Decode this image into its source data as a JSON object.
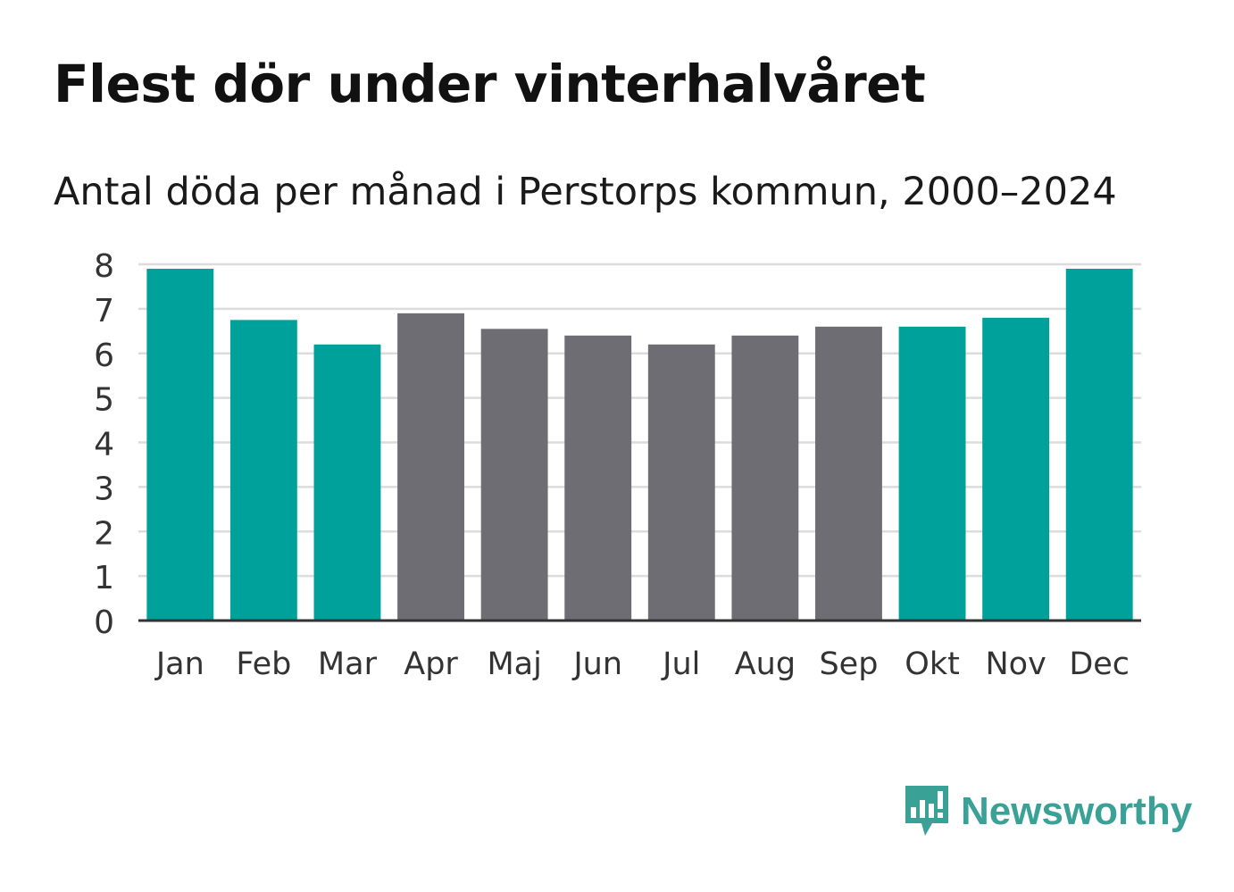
{
  "header": {
    "title": "Flest dör under vinterhalvåret",
    "subtitle": "Antal döda per månad i Perstorps kommun, 2000–2024"
  },
  "chart_data": {
    "type": "bar",
    "categories": [
      "Jan",
      "Feb",
      "Mar",
      "Apr",
      "Maj",
      "Jun",
      "Jul",
      "Aug",
      "Sep",
      "Okt",
      "Nov",
      "Dec"
    ],
    "values": [
      7.9,
      6.75,
      6.2,
      6.9,
      6.55,
      6.4,
      6.2,
      6.4,
      6.6,
      6.6,
      6.8,
      7.9
    ],
    "groups": [
      "winter",
      "winter",
      "winter",
      "summer",
      "summer",
      "summer",
      "summer",
      "summer",
      "summer",
      "winter",
      "winter",
      "winter"
    ],
    "colors": {
      "winter": "#00a19a",
      "summer": "#6e6d73"
    },
    "yticks": [
      0,
      1,
      2,
      3,
      4,
      5,
      6,
      7,
      8
    ],
    "ylim": [
      0,
      8
    ],
    "title": "Flest dör under vinterhalvåret",
    "xlabel": "",
    "ylabel": "",
    "grid": true
  },
  "brand": {
    "name": "Newsworthy",
    "logo_icon": "speech-bubble-bar-chart-icon",
    "color": "#3aa197"
  }
}
